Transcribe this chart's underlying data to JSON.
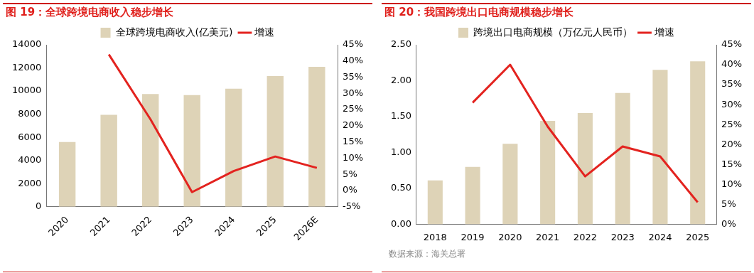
{
  "chart_data": [
    {
      "type": "bar",
      "title": "图 19：全球跨境电商收入稳步增长",
      "categories": [
        "2020",
        "2021",
        "2022",
        "2023",
        "2024",
        "2025",
        "2026E"
      ],
      "series": [
        {
          "name": "全球跨境电商收入(亿美元)",
          "color": "#ded3b7",
          "values": [
            5600,
            7950,
            9750,
            9650,
            10200,
            11300,
            12100
          ]
        },
        {
          "name": "增速",
          "type": "line",
          "axis": "y2",
          "color": "#e3231f",
          "values": [
            null,
            42,
            22,
            -0.5,
            6,
            10.5,
            7
          ]
        }
      ],
      "ylim": [
        0,
        14000
      ],
      "yticks": [
        0,
        2000,
        4000,
        6000,
        8000,
        10000,
        12000,
        14000
      ],
      "y2lim": [
        -5,
        45
      ],
      "y2ticks": [
        {
          "value": -5,
          "label": "-5%"
        },
        {
          "value": 0,
          "label": "0%"
        },
        {
          "value": 5,
          "label": "5%"
        },
        {
          "value": 10,
          "label": "10%"
        },
        {
          "value": 15,
          "label": "15%"
        },
        {
          "value": 20,
          "label": "20%"
        },
        {
          "value": 25,
          "label": "25%"
        },
        {
          "value": 30,
          "label": "30%"
        },
        {
          "value": 35,
          "label": "35%"
        },
        {
          "value": 40,
          "label": "40%"
        },
        {
          "value": 45,
          "label": "45%"
        }
      ],
      "legend": "top",
      "grid": false
    },
    {
      "type": "bar",
      "title": "图 20：我国跨境出口电商规模稳步增长",
      "categories": [
        "2018",
        "2019",
        "2020",
        "2021",
        "2022",
        "2023",
        "2024",
        "2025"
      ],
      "series": [
        {
          "name": "跨境出口电商规模（万亿元人民币）",
          "color": "#ded3b7",
          "values": [
            0.61,
            0.8,
            1.12,
            1.44,
            1.55,
            1.83,
            2.15,
            2.27
          ]
        },
        {
          "name": "增速",
          "type": "line",
          "axis": "y2",
          "color": "#e3231f",
          "values": [
            null,
            30.5,
            40,
            24.5,
            12,
            19.5,
            17,
            5.5
          ]
        }
      ],
      "ylim": [
        0,
        2.5
      ],
      "yticks": [
        {
          "value": 0,
          "label": "0.00"
        },
        {
          "value": 0.5,
          "label": "0.50"
        },
        {
          "value": 1,
          "label": "1.00"
        },
        {
          "value": 1.5,
          "label": "1.50"
        },
        {
          "value": 2,
          "label": "2.00"
        },
        {
          "value": 2.5,
          "label": "2.50"
        }
      ],
      "y2lim": [
        0,
        45
      ],
      "y2ticks": [
        {
          "value": 0,
          "label": "0%"
        },
        {
          "value": 5,
          "label": "5%"
        },
        {
          "value": 10,
          "label": "10%"
        },
        {
          "value": 15,
          "label": "15%"
        },
        {
          "value": 20,
          "label": "20%"
        },
        {
          "value": 25,
          "label": "25%"
        },
        {
          "value": 30,
          "label": "30%"
        },
        {
          "value": 35,
          "label": "35%"
        },
        {
          "value": 40,
          "label": "40%"
        },
        {
          "value": 45,
          "label": "45%"
        }
      ],
      "legend": "top",
      "grid": false,
      "annotations": [
        "数据来源：海关总署"
      ]
    }
  ]
}
